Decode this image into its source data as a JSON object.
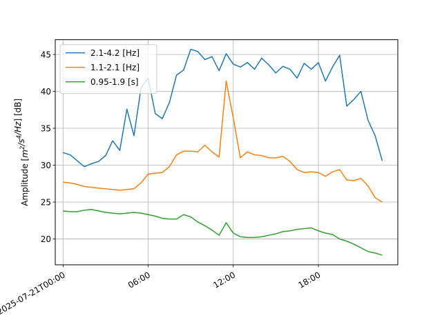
{
  "chart_data": {
    "type": "line",
    "x": [
      "2025-07-21T00:00",
      "2025-07-21T00:30",
      "2025-07-21T01:00",
      "2025-07-21T01:30",
      "2025-07-21T02:00",
      "2025-07-21T02:30",
      "2025-07-21T03:00",
      "2025-07-21T03:30",
      "2025-07-21T04:00",
      "2025-07-21T04:30",
      "2025-07-21T05:00",
      "2025-07-21T05:30",
      "2025-07-21T06:00",
      "2025-07-21T06:30",
      "2025-07-21T07:00",
      "2025-07-21T07:30",
      "2025-07-21T08:00",
      "2025-07-21T08:30",
      "2025-07-21T09:00",
      "2025-07-21T09:30",
      "2025-07-21T10:00",
      "2025-07-21T10:30",
      "2025-07-21T11:00",
      "2025-07-21T11:30",
      "2025-07-21T12:00",
      "2025-07-21T12:30",
      "2025-07-21T13:00",
      "2025-07-21T13:30",
      "2025-07-21T14:00",
      "2025-07-21T14:30",
      "2025-07-21T15:00",
      "2025-07-21T15:30",
      "2025-07-21T16:00",
      "2025-07-21T16:30",
      "2025-07-21T17:00",
      "2025-07-21T17:30",
      "2025-07-21T18:00",
      "2025-07-21T18:30",
      "2025-07-21T19:00",
      "2025-07-21T19:30",
      "2025-07-21T20:00",
      "2025-07-21T20:30",
      "2025-07-21T21:00",
      "2025-07-21T21:30",
      "2025-07-21T22:00",
      "2025-07-21T22:30"
    ],
    "series": [
      {
        "name": "2.1-4.2 [Hz]",
        "color": "#1f77b4",
        "values": [
          31.7,
          31.4,
          30.6,
          29.8,
          30.2,
          30.5,
          31.3,
          33.3,
          32.0,
          37.6,
          34.0,
          40.5,
          41.8,
          37.0,
          36.3,
          38.5,
          42.2,
          42.9,
          45.7,
          45.4,
          44.3,
          44.7,
          42.8,
          45.1,
          43.7,
          43.3,
          43.9,
          43.0,
          44.5,
          43.6,
          42.5,
          43.4,
          43.0,
          41.8,
          43.8,
          43.0,
          43.9,
          41.4,
          43.3,
          44.9,
          38.0,
          38.9,
          40.0,
          36.1,
          34.0,
          30.6
        ]
      },
      {
        "name": "1.1-2.1 [Hz]",
        "color": "#ff7f0e",
        "values": [
          27.7,
          27.6,
          27.4,
          27.1,
          27.0,
          26.9,
          26.8,
          26.7,
          26.6,
          26.7,
          26.8,
          27.6,
          28.8,
          28.9,
          29.0,
          29.8,
          31.4,
          31.9,
          31.9,
          31.8,
          32.7,
          31.8,
          31.1,
          41.4,
          36.4,
          31.0,
          31.8,
          31.4,
          31.3,
          31.0,
          31.0,
          31.2,
          30.5,
          29.4,
          29.0,
          29.1,
          29.0,
          28.5,
          29.1,
          29.4,
          28.0,
          27.9,
          28.2,
          27.2,
          25.6,
          25.0
        ]
      },
      {
        "name": "0.95-1.9 [s]",
        "color": "#2ca02c",
        "values": [
          23.8,
          23.7,
          23.7,
          23.9,
          24.0,
          23.8,
          23.6,
          23.5,
          23.4,
          23.5,
          23.6,
          23.5,
          23.3,
          23.1,
          22.8,
          22.7,
          22.7,
          23.3,
          23.0,
          22.3,
          21.8,
          21.2,
          20.5,
          22.2,
          20.8,
          20.3,
          20.2,
          20.2,
          20.3,
          20.5,
          20.7,
          21.0,
          21.1,
          21.3,
          21.4,
          21.5,
          21.1,
          20.8,
          20.6,
          20.0,
          19.7,
          19.3,
          18.8,
          18.3,
          18.1,
          17.8
        ]
      }
    ],
    "x_ticks": [
      {
        "label": "2025-07-21T00:00",
        "index": 0
      },
      {
        "label": "06:00",
        "index": 12
      },
      {
        "label": "12:00",
        "index": 24
      },
      {
        "label": "18:00",
        "index": 36
      }
    ],
    "y_ticks": [
      20,
      25,
      30,
      35,
      40,
      45
    ],
    "ylim": [
      16.5,
      47.0
    ],
    "xlim_index": [
      -1.1,
      47.2
    ],
    "ylabel_prefix": "Amplitude [",
    "ylabel_unit_html": "m2/s4/Hz",
    "ylabel_suffix": "] [dB]",
    "title": "",
    "xlabel": "",
    "grid": true,
    "legend_position": "top-left"
  }
}
